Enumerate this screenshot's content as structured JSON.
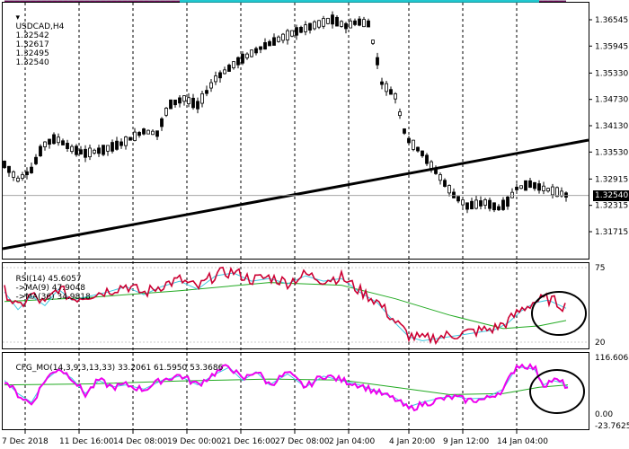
{
  "main": {
    "symbol_label": "USDCAD,H4",
    "ohlc": [
      "1.32542",
      "1.32617",
      "1.32495",
      "1.32540"
    ],
    "current_price": "1.32540",
    "price_ticks": [
      "1.36545",
      "1.35945",
      "1.35330",
      "1.34730",
      "1.34130",
      "1.33530",
      "1.32915",
      "1.32315",
      "1.31715"
    ]
  },
  "rsi": {
    "label": "RSI(14) 45.6057",
    "ma9": "->MA(9) 47.9048",
    "ma36": "->MA(36) 34.9818",
    "ticks": [
      "75",
      "20"
    ]
  },
  "cfg": {
    "label": "CFG_MO(14,3,9,3,13,33) 33.2061 61.5950 53.3686",
    "ticks": [
      "116.6068",
      "0.00",
      "-23.7625"
    ]
  },
  "time_axis": [
    "7 Dec 2018",
    "11 Dec 16:00",
    "14 Dec 08:00",
    "19 Dec 00:00",
    "21 Dec 16:00",
    "27 Dec 08:00",
    "2 Jan 04:00",
    "4 Jan 20:00",
    "9 Jan 12:00",
    "14 Jan 04:00"
  ],
  "colors": {
    "candle": "#000000",
    "ma_fast": "#cc0000",
    "ma_blue": "#1a1a8c",
    "ma_purple": "#800060",
    "ma_cyan": "#20c8d0",
    "bollinger": "#22aa22",
    "trendline": "#000000",
    "rsi_line": "#cc0033",
    "cfg_line": "#ee00ee",
    "grid": "#000000"
  }
}
